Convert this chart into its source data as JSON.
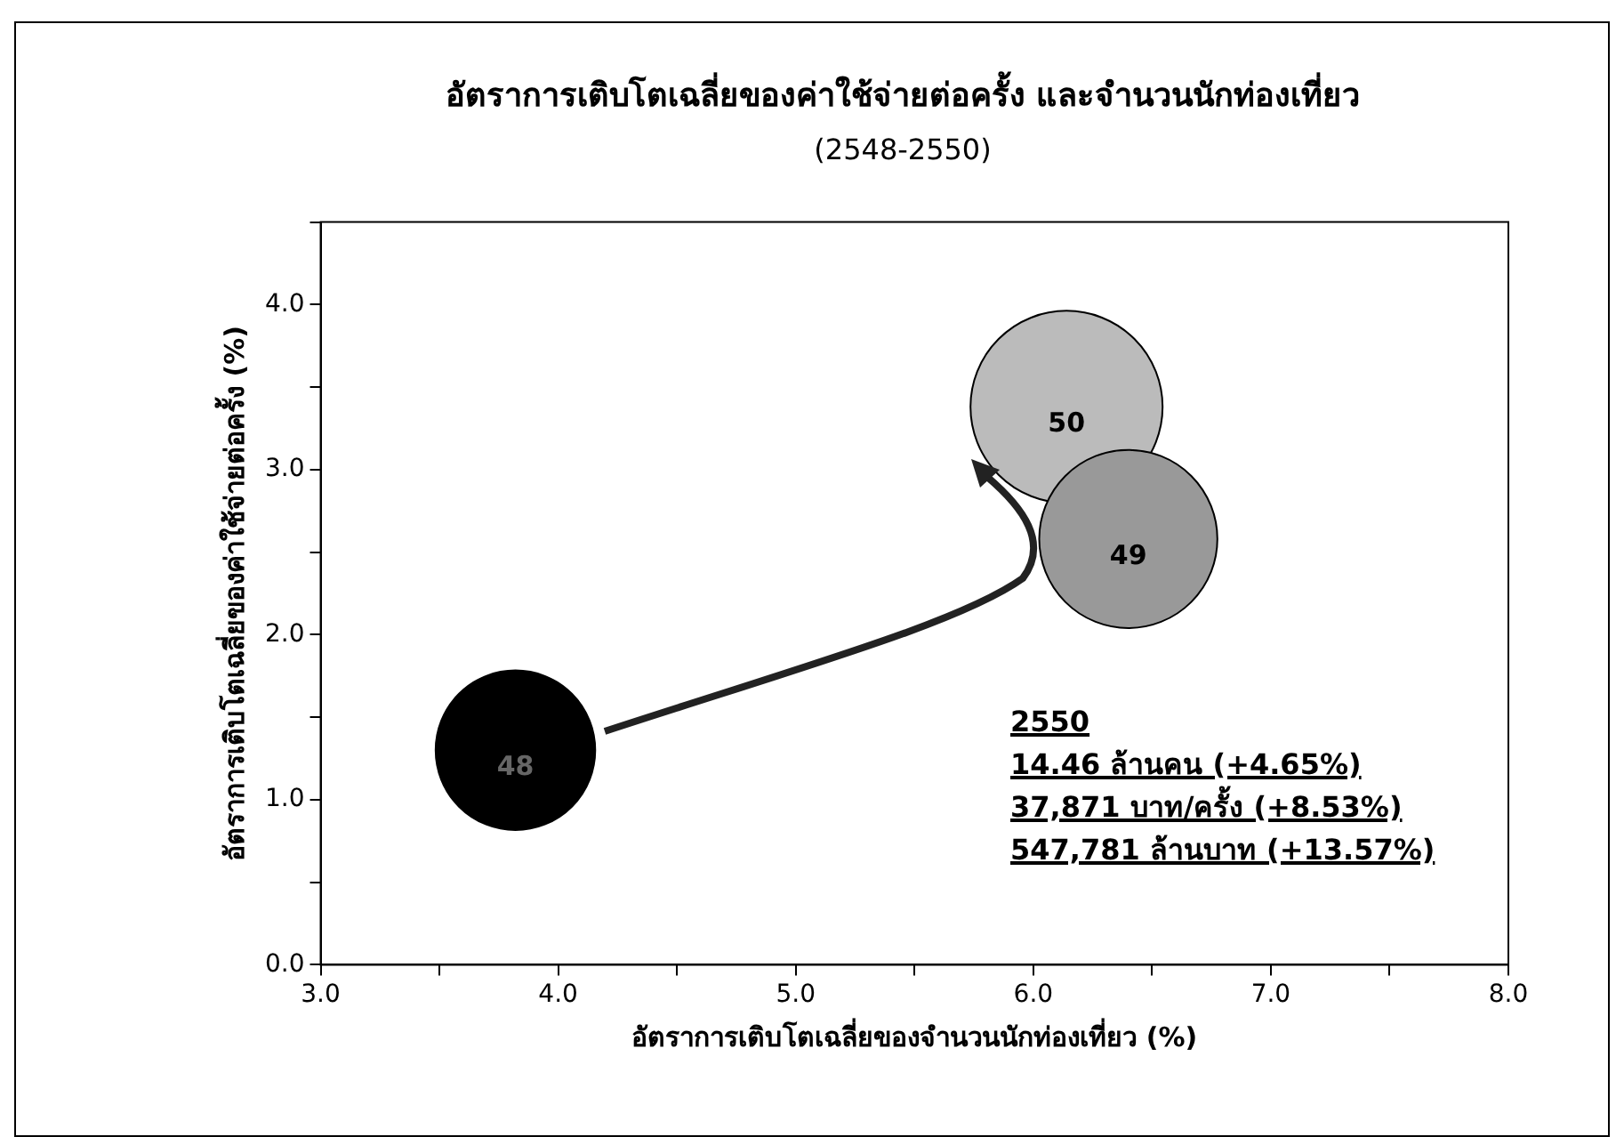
{
  "chart_data": {
    "type": "bubble",
    "title": "อัตราการเติบโตเฉลี่ยของค่าใช้จ่ายต่อครั้ง และจำนวนนักท่องเที่ยว",
    "subtitle": "(2548-2550)",
    "xlabel": "อัตราการเติบโตเฉลี่ยของจำนวนนักท่องเที่ยว (%)",
    "ylabel": "อัตราการเติบโตเฉลี่ยของค่าใช้จ่ายต่อครั้ง (%)",
    "series": [
      {
        "name": "48",
        "color": "#000000",
        "x": [
          3.82
        ],
        "values": [
          1.3
        ],
        "sizes": [
          0.69
        ]
      },
      {
        "name": "49",
        "color": "#999999",
        "x": [
          6.4
        ],
        "values": [
          2.58
        ],
        "sizes": [
          0.86
        ]
      },
      {
        "name": "50",
        "color": "#bbbbbb",
        "x": [
          6.14
        ],
        "values": [
          3.38
        ],
        "sizes": [
          1
        ]
      }
    ],
    "xlim": [
      3,
      8
    ],
    "ylim": [
      0,
      4.5
    ],
    "xticks": [
      {
        "value": 3,
        "label": "3.0"
      },
      {
        "value": 4,
        "label": "4.0"
      },
      {
        "value": 5,
        "label": "5.0"
      },
      {
        "value": 6,
        "label": "6.0"
      },
      {
        "value": 7,
        "label": "7.0"
      },
      {
        "value": 8,
        "label": "8.0"
      }
    ],
    "yticks": [
      {
        "value": 0,
        "label": "0.0"
      },
      {
        "value": 1,
        "label": "1.0"
      },
      {
        "value": 2,
        "label": "2.0"
      },
      {
        "value": 3,
        "label": "3.0"
      },
      {
        "value": 4,
        "label": "4.0"
      }
    ],
    "annotations": [
      "2550",
      "14.46 ล้านคน (+4.65%)",
      "37,871 บาท/ครั้ง (+8.53%)",
      "547,781 ล้านบาท (+13.57%)"
    ]
  }
}
